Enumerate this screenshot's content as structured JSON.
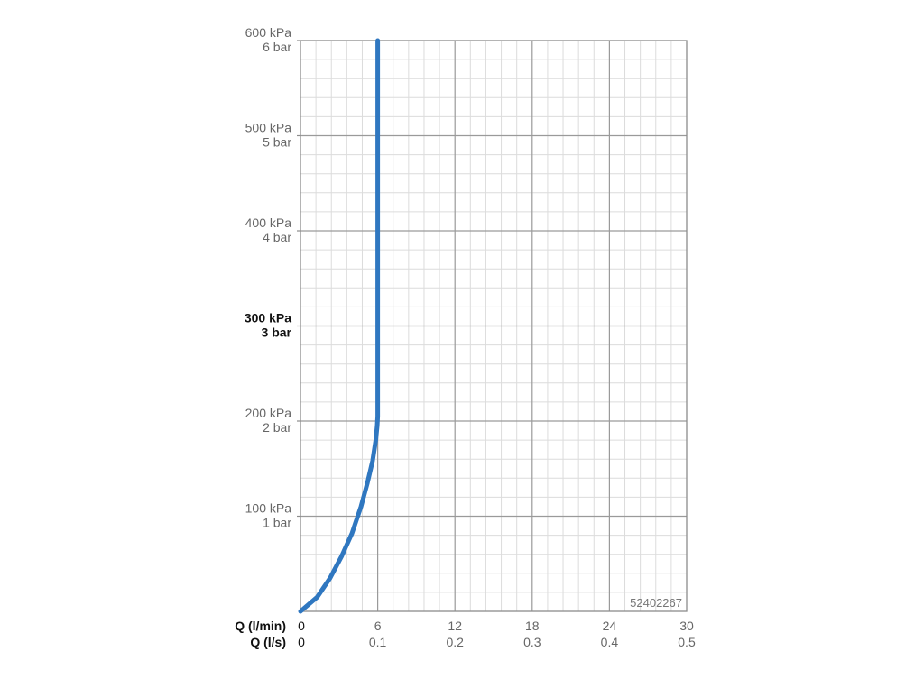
{
  "chart_data": {
    "type": "line",
    "title": "",
    "id_label": "52402267",
    "x_axes": [
      {
        "label": "Q (l/min)",
        "ticks": [
          "0",
          "6",
          "12",
          "18",
          "24",
          "30"
        ],
        "range": [
          0,
          30
        ]
      },
      {
        "label": "Q (l/s)",
        "ticks": [
          "0",
          "0.1",
          "0.2",
          "0.3",
          "0.4",
          "0.5"
        ],
        "range": [
          0,
          0.5
        ]
      }
    ],
    "y_axis": {
      "range": [
        0,
        600
      ],
      "unit": "kPa",
      "ticks": [
        {
          "value": 100,
          "kpa": "100 kPa",
          "bar": "1 bar",
          "bold": false
        },
        {
          "value": 200,
          "kpa": "200 kPa",
          "bar": "2 bar",
          "bold": false
        },
        {
          "value": 300,
          "kpa": "300 kPa",
          "bar": "3 bar",
          "bold": true
        },
        {
          "value": 400,
          "kpa": "400 kPa",
          "bar": "4 bar",
          "bold": false
        },
        {
          "value": 500,
          "kpa": "500 kPa",
          "bar": "5 bar",
          "bold": false
        },
        {
          "value": 600,
          "kpa": "600 kPa",
          "bar": "6 bar",
          "bold": false
        }
      ]
    },
    "grid": true,
    "series": [
      {
        "color": "#2f77c0",
        "points": [
          [
            0,
            0
          ],
          [
            1.3,
            15
          ],
          [
            2.3,
            35
          ],
          [
            3.2,
            58
          ],
          [
            4.0,
            82
          ],
          [
            4.7,
            110
          ],
          [
            5.2,
            135
          ],
          [
            5.6,
            158
          ],
          [
            5.85,
            180
          ],
          [
            5.96,
            195
          ],
          [
            6.0,
            205
          ],
          [
            6.0,
            300
          ],
          [
            6.0,
            600
          ]
        ]
      }
    ]
  }
}
